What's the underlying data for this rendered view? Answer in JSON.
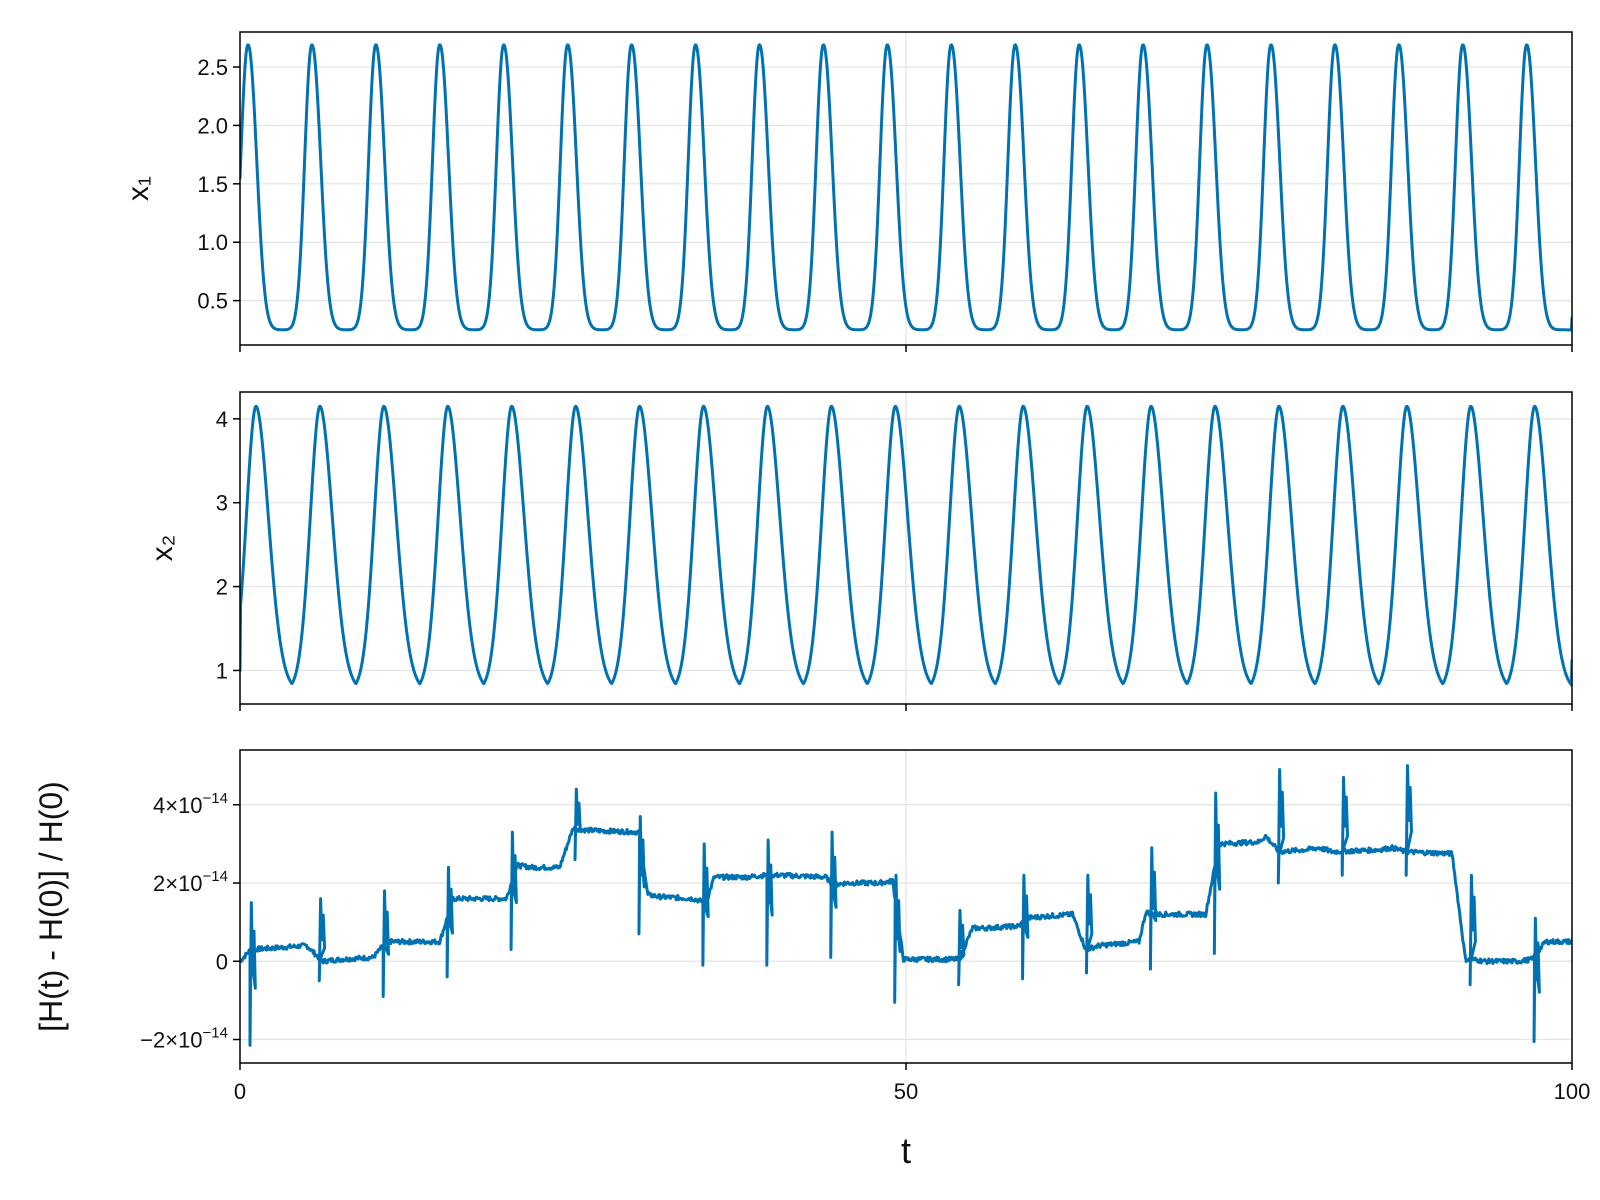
{
  "chart_data": [
    {
      "type": "line",
      "panel": "top",
      "ylabel": "x₁",
      "xlim": [
        0,
        100
      ],
      "ylim": [
        0.12,
        2.8
      ],
      "yticks": [
        0.5,
        1.0,
        1.5,
        2.0,
        2.5
      ],
      "yticklabels": [
        "0.5",
        "1.0",
        "1.5",
        "2.0",
        "2.5"
      ],
      "xticks": [
        0,
        50,
        100
      ],
      "grid": true,
      "color": "#0072b2",
      "series": [
        {
          "x": [
            0.0,
            0.6,
            1.2,
            1.8,
            2.5,
            3.2,
            4.0,
            4.8,
            5.4,
            6.0,
            6.6,
            7.2,
            7.8,
            8.6,
            9.3,
            10.0,
            10.7,
            11.2
          ],
          "values": [
            1.55,
            2.69,
            1.25,
            0.45,
            0.25,
            0.26,
            0.45,
            1.15,
            2.3,
            2.69,
            1.25,
            0.45,
            0.25,
            0.26,
            0.45,
            1.15,
            2.3,
            2.69
          ]
        }
      ],
      "peak_times": [
        0.6,
        5.4,
        10.2,
        15.0,
        19.8,
        24.6,
        29.4,
        34.2,
        39.0,
        43.8,
        48.6,
        53.4,
        58.2,
        63.0,
        67.8,
        72.6,
        77.4,
        82.2,
        87.0,
        91.8,
        96.6
      ],
      "peak_value": 2.69,
      "trough_value": 0.25,
      "end_value": 0.35
    },
    {
      "type": "line",
      "panel": "middle",
      "ylabel": "x₂",
      "xlim": [
        0,
        100
      ],
      "ylim": [
        0.6,
        4.32
      ],
      "yticks": [
        1,
        2,
        3,
        4
      ],
      "yticklabels": [
        "1",
        "2",
        "3",
        "4"
      ],
      "xticks": [
        0,
        50,
        100
      ],
      "grid": true,
      "color": "#0072b2",
      "series": [
        {
          "x": [
            0.0,
            1.2,
            2.1,
            3.0,
            3.9,
            4.8,
            5.7,
            6.0
          ],
          "values": [
            1.0,
            4.15,
            2.6,
            1.15,
            0.76,
            0.78,
            1.4,
            2.2
          ]
        }
      ],
      "peak_times": [
        1.2,
        6.0,
        10.8,
        15.6,
        20.4,
        25.2,
        30.0,
        34.8,
        39.6,
        44.4,
        49.2,
        54.0,
        58.8,
        63.6,
        68.4,
        73.2,
        78.0,
        82.8,
        87.6,
        92.4,
        97.2
      ],
      "peak_value": 4.15,
      "trough_value": 0.76,
      "start_value": 1.0,
      "end_value": 1.12
    },
    {
      "type": "line",
      "panel": "bottom",
      "ylabel": "[H(t) - H(0)] / H(0)",
      "xlabel": "t",
      "xlim": [
        0,
        100
      ],
      "ylim": [
        -2.6e-14,
        5.4e-14
      ],
      "yticks": [
        -2e-14,
        0,
        2e-14,
        4e-14
      ],
      "yticklabels": [
        [
          "−2×10",
          "−14"
        ],
        [
          "0",
          ""
        ],
        [
          "2×10",
          "−14"
        ],
        [
          "4×10",
          "−14"
        ]
      ],
      "xticks": [
        0,
        50,
        100
      ],
      "xticklabels": [
        "0",
        "50",
        "100"
      ],
      "grid": true,
      "color": "#0072b2",
      "series": [
        {
          "x": [
            0,
            0.8,
            3.0,
            5.0,
            6.2,
            7.6,
            10.0,
            11.0,
            12.0,
            15.0,
            16.0,
            17.0,
            20.0,
            20.8,
            22.0,
            24.0,
            25.0,
            26.0,
            30.0,
            30.6,
            31.5,
            34.0,
            35.0,
            35.6,
            38.0,
            39.5,
            40.5,
            44.0,
            44.5,
            45.5,
            48.0,
            49.0,
            49.8,
            51.0,
            53.0,
            54.0,
            55.0,
            56.0,
            58.5,
            59.0,
            60.5,
            62.5,
            63.5,
            64.5,
            67.5,
            68.0,
            69.0,
            71.0,
            72.5,
            73.5,
            76.5,
            77.0,
            78.0,
            80.0,
            81.0,
            82.0,
            85.5,
            86.5,
            87.5,
            91.0,
            92.0,
            92.5,
            93.5,
            96.0,
            97.0,
            98.0,
            100.0
          ],
          "values": [
            0,
            3e-15,
            3.5e-15,
            4e-15,
            0,
            5e-16,
            1e-15,
            5e-15,
            5e-15,
            5e-15,
            1.6e-14,
            1.6e-14,
            1.6e-14,
            2.45e-14,
            2.4e-14,
            2.4e-14,
            3.4e-14,
            3.35e-14,
            3.3e-14,
            1.7e-14,
            1.65e-14,
            1.6e-14,
            1.5e-14,
            2.15e-14,
            2.15e-14,
            2.2e-14,
            2.2e-14,
            2.15e-14,
            1.95e-14,
            2e-14,
            2e-14,
            2.05e-14,
            5e-16,
            5e-16,
            5e-16,
            5e-16,
            8.5e-15,
            8.5e-15,
            9e-15,
            1.1e-14,
            1.15e-14,
            1.2e-14,
            3e-15,
            4e-15,
            5e-15,
            1.25e-14,
            1.2e-14,
            1.2e-14,
            1.2e-14,
            3e-14,
            3.05e-14,
            3.2e-14,
            2.8e-14,
            2.85e-14,
            2.9e-14,
            2.8e-14,
            2.85e-14,
            2.9e-14,
            2.8e-14,
            2.75e-14,
            5e-16,
            5e-16,
            0.0,
            0.0,
            5e-16,
            5e-15,
            5e-15
          ]
        }
      ],
      "spikes": [
        {
          "x": 0.8,
          "values": [
            -2.15e-14,
            1.5e-14
          ]
        },
        {
          "x": 6.0,
          "values": [
            -5e-15,
            1.6e-14
          ]
        },
        {
          "x": 10.8,
          "values": [
            -9e-15,
            1.8e-14
          ]
        },
        {
          "x": 15.6,
          "values": [
            -4e-15,
            2.4e-14
          ]
        },
        {
          "x": 20.4,
          "values": [
            3e-15,
            3.3e-14
          ]
        },
        {
          "x": 25.2,
          "values": [
            2.6e-14,
            4.4e-14
          ]
        },
        {
          "x": 30.0,
          "values": [
            7e-15,
            3.7e-14
          ]
        },
        {
          "x": 34.8,
          "values": [
            -1e-15,
            3e-14
          ]
        },
        {
          "x": 39.6,
          "values": [
            -1e-15,
            3.1e-14
          ]
        },
        {
          "x": 44.4,
          "values": [
            1e-15,
            3.3e-14
          ]
        },
        {
          "x": 49.2,
          "values": [
            -1.05e-14,
            2.2e-14
          ]
        },
        {
          "x": 54.0,
          "values": [
            -6e-15,
            1.3e-14
          ]
        },
        {
          "x": 58.8,
          "values": [
            -4.5e-15,
            2.2e-14
          ]
        },
        {
          "x": 63.6,
          "values": [
            -3e-15,
            2.2e-14
          ]
        },
        {
          "x": 68.4,
          "values": [
            -2e-15,
            2.9e-14
          ]
        },
        {
          "x": 73.2,
          "values": [
            2e-15,
            4.3e-14
          ]
        },
        {
          "x": 78.0,
          "values": [
            2e-14,
            4.9e-14
          ]
        },
        {
          "x": 82.8,
          "values": [
            2.2e-14,
            4.7e-14
          ]
        },
        {
          "x": 87.6,
          "values": [
            2.2e-14,
            5e-14
          ]
        },
        {
          "x": 92.4,
          "values": [
            -6e-15,
            2.2e-14
          ]
        },
        {
          "x": 97.2,
          "values": [
            -2.05e-14,
            1.1e-14
          ]
        }
      ]
    }
  ]
}
